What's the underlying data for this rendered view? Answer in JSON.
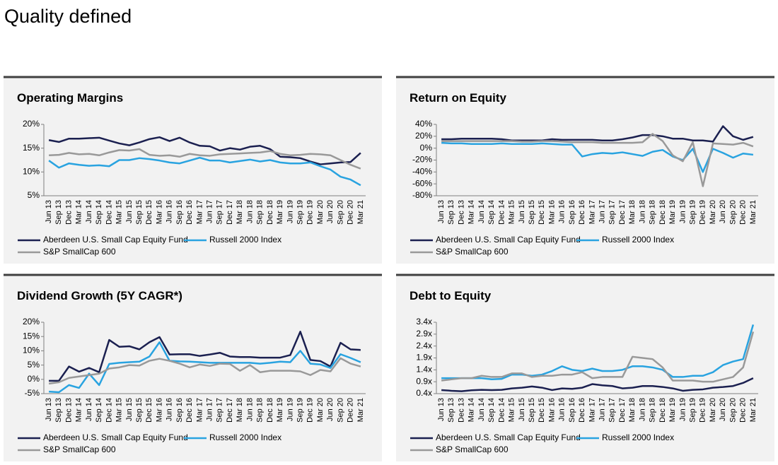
{
  "title": "Quality defined",
  "chart_data": [
    {
      "type": "line",
      "title": "Operating Margins",
      "categories": [
        "Jun 13",
        "Sep 13",
        "Dec 13",
        "Mar 14",
        "Jun 14",
        "Sep 14",
        "Dec 14",
        "Mar 15",
        "Jun 15",
        "Sep 15",
        "Dec 15",
        "Mar 16",
        "Jun 16",
        "Sep 16",
        "Dec 16",
        "Mar 17",
        "Jun 17",
        "Sep 17",
        "Dec 17",
        "Mar 18",
        "Jun 18",
        "Sep 18",
        "Dec 18",
        "Mar 19",
        "Jun 19",
        "Sep 19",
        "Dec 19",
        "Mar 20",
        "Jun 20",
        "Sep 20",
        "Dec 20",
        "Mar 21"
      ],
      "ylim": [
        5,
        20
      ],
      "yticks": [
        {
          "value": 5,
          "label": "5%"
        },
        {
          "value": 10,
          "label": "10%"
        },
        {
          "value": 15,
          "label": "15%"
        },
        {
          "value": 20,
          "label": "20%"
        }
      ],
      "series": [
        {
          "name": "Aberdeen U.S. Small Cap Equity Fund",
          "color": "#1b2050",
          "values": [
            16.7,
            16.3,
            17,
            17,
            17.1,
            17.2,
            16.6,
            16,
            15.6,
            16.2,
            16.9,
            17.3,
            16.5,
            17.2,
            16.2,
            15.5,
            15.4,
            14.5,
            15,
            14.7,
            15.3,
            15.5,
            14.8,
            13.2,
            13.1,
            12.9,
            12.2,
            11.6,
            11.8,
            12,
            12.1,
            14
          ]
        },
        {
          "name": "Russell 2000 Index",
          "color": "#29a3e0",
          "values": [
            12.4,
            10.9,
            11.8,
            11.5,
            11.3,
            11.4,
            11.2,
            12.5,
            12.5,
            12.9,
            12.7,
            12.4,
            12,
            11.8,
            12.4,
            13,
            12.4,
            12.4,
            12,
            12.3,
            12.6,
            12.2,
            12.5,
            12,
            11.8,
            11.8,
            12,
            11.2,
            10.5,
            9,
            8.4,
            7.2
          ]
        },
        {
          "name": "S&P SmallCap 600",
          "color": "#999999",
          "values": [
            13.5,
            13.6,
            14,
            13.7,
            13.8,
            13.5,
            14.1,
            14.6,
            14.5,
            14.8,
            13.6,
            13.4,
            13.5,
            13.2,
            13.8,
            13.5,
            13.4,
            13.7,
            13.8,
            13.9,
            14,
            14.1,
            14.4,
            13.8,
            13.5,
            13.6,
            13.8,
            13.7,
            13.5,
            12.5,
            11.5,
            10.7
          ]
        }
      ]
    },
    {
      "type": "line",
      "title": "Return on Equity",
      "categories": [
        "Jun 13",
        "Sep 13",
        "Dec 13",
        "Mar 14",
        "Jun 14",
        "Sep 14",
        "Dec 14",
        "Mar 15",
        "Jun 15",
        "Sep 15",
        "Dec 15",
        "Mar 16",
        "Jun 16",
        "Sep 16",
        "Dec 16",
        "Mar 17",
        "Jun 17",
        "Sep 17",
        "Dec 17",
        "Mar 18",
        "Jun 18",
        "Sep 18",
        "Dec 18",
        "Mar 19",
        "Jun 19",
        "Sep 19",
        "Dec 19",
        "Mar 20",
        "Jun 20",
        "Sep 20",
        "Dec 20",
        "Mar 21"
      ],
      "ylim": [
        -80,
        40
      ],
      "yticks": [
        {
          "value": -80,
          "label": "-80%"
        },
        {
          "value": -60,
          "label": "-60%"
        },
        {
          "value": -40,
          "label": "-40%"
        },
        {
          "value": -20,
          "label": "-20%"
        },
        {
          "value": 0,
          "label": "0%"
        },
        {
          "value": 20,
          "label": "20%"
        },
        {
          "value": 40,
          "label": "40%"
        }
      ],
      "series": [
        {
          "name": "Aberdeen U.S. Small Cap Equity Fund",
          "color": "#1b2050",
          "values": [
            15,
            15,
            16,
            16,
            16,
            16,
            15,
            13,
            13,
            13,
            13,
            15,
            14,
            14,
            14,
            14,
            13,
            13,
            15,
            18,
            22,
            22,
            20,
            16,
            16,
            13,
            13,
            11,
            37,
            20,
            14,
            19
          ]
        },
        {
          "name": "Russell 2000 Index",
          "color": "#29a3e0",
          "values": [
            9,
            8,
            8,
            7,
            7,
            7,
            8,
            7,
            7,
            7,
            8,
            7,
            6,
            6,
            -14,
            -10,
            -8,
            -9,
            -7,
            -10,
            -13,
            -6,
            -3,
            -14,
            -20,
            -1,
            -40,
            -1,
            -8,
            -16,
            -9,
            -11
          ]
        },
        {
          "name": "S&P SmallCap 600",
          "color": "#999999",
          "values": [
            12,
            12,
            12,
            12,
            12,
            12,
            12,
            12,
            11,
            11,
            12,
            12,
            11,
            10,
            10,
            10,
            9,
            9,
            9,
            9,
            10,
            24,
            12,
            -12,
            -22,
            10,
            -64,
            8,
            7,
            6,
            9,
            3
          ]
        }
      ]
    },
    {
      "type": "line",
      "title": "Dividend Growth (5Y CAGR*)",
      "categories": [
        "Jun 13",
        "Sep 13",
        "Dec 13",
        "Mar 14",
        "Jun 14",
        "Sep 14",
        "Dec 14",
        "Mar 15",
        "Jun 15",
        "Sep 15",
        "Dec 15",
        "Mar 16",
        "Jun 16",
        "Sep 16",
        "Dec 16",
        "Mar 17",
        "Jun 17",
        "Sep 17",
        "Dec 17",
        "Mar 18",
        "Jun 18",
        "Sep 18",
        "Dec 18",
        "Mar 19",
        "Jun 19",
        "Sep 19",
        "Dec 19",
        "Mar 20",
        "Jun 20",
        "Sep 20",
        "Dec 20",
        "Mar 21"
      ],
      "ylim": [
        -5,
        20
      ],
      "yticks": [
        {
          "value": -5,
          "label": "-5%"
        },
        {
          "value": 0,
          "label": "0%"
        },
        {
          "value": 5,
          "label": "5%"
        },
        {
          "value": 10,
          "label": "10%"
        },
        {
          "value": 15,
          "label": "15%"
        },
        {
          "value": 20,
          "label": "20%"
        }
      ],
      "series": [
        {
          "name": "Aberdeen U.S. Small Cap Equity Fund",
          "color": "#1b2050",
          "values": [
            -0.5,
            -0.5,
            4.5,
            2.7,
            4,
            2.5,
            13.8,
            11.4,
            11.6,
            10.5,
            13,
            14.8,
            8.7,
            8.8,
            8.8,
            8.2,
            8.7,
            9.3,
            8,
            7.8,
            7.8,
            7.6,
            7.6,
            7.6,
            8.5,
            16.7,
            6.8,
            6.4,
            4.5,
            12.8,
            10.5,
            10.3
          ]
        },
        {
          "name": "Russell 2000 Index",
          "color": "#29a3e0",
          "values": [
            -4.3,
            -4.5,
            -2,
            -3,
            2,
            -2,
            5.4,
            5.8,
            6,
            6.2,
            8,
            13,
            6.5,
            6.3,
            6.2,
            6,
            5.8,
            5.8,
            5.8,
            5.8,
            5.8,
            5.5,
            5.8,
            6.2,
            6,
            10,
            5.5,
            5.2,
            4,
            8.8,
            7.5,
            6
          ]
        },
        {
          "name": "S&P SmallCap 600",
          "color": "#999999",
          "values": [
            -1.5,
            -1,
            0.5,
            1,
            1.5,
            2,
            3.8,
            4.2,
            5,
            4.8,
            6.5,
            7.2,
            6.5,
            5.5,
            4.2,
            5.2,
            4.7,
            5.5,
            5.4,
            3,
            5,
            2.5,
            3,
            3,
            3,
            2.8,
            1.5,
            3.3,
            2.8,
            7.4,
            5.5,
            4.5
          ]
        }
      ]
    },
    {
      "type": "line",
      "title": "Debt to Equity",
      "categories": [
        "Jun 13",
        "Sep 13",
        "Dec 13",
        "Mar 14",
        "Jun 14",
        "Sep 14",
        "Dec 14",
        "Mar 15",
        "Jun 15",
        "Sep 15",
        "Dec 15",
        "Mar 16",
        "Jun 16",
        "Sep 16",
        "Dec 16",
        "Mar 17",
        "Jun 17",
        "Sep 17",
        "Dec 17",
        "Mar 18",
        "Jun 18",
        "Sep 18",
        "Dec 18",
        "Mar 19",
        "Jun 19",
        "Sep 19",
        "Dec 19",
        "Mar 20",
        "Jun 20",
        "Sep 20",
        "Dec 20",
        "Mar 21"
      ],
      "ylim": [
        0.4,
        3.4
      ],
      "yticks": [
        {
          "value": 0.4,
          "label": "0.4x"
        },
        {
          "value": 0.9,
          "label": "0.9x"
        },
        {
          "value": 1.4,
          "label": "1.4x"
        },
        {
          "value": 1.9,
          "label": "1.9x"
        },
        {
          "value": 2.4,
          "label": "2.4x"
        },
        {
          "value": 2.9,
          "label": "2.9x"
        },
        {
          "value": 3.4,
          "label": "3.4x"
        }
      ],
      "series": [
        {
          "name": "Aberdeen U.S. Small Cap Equity Fund",
          "color": "#1b2050",
          "values": [
            0.55,
            0.52,
            0.5,
            0.54,
            0.56,
            0.55,
            0.56,
            0.62,
            0.65,
            0.7,
            0.65,
            0.55,
            0.62,
            0.6,
            0.65,
            0.8,
            0.75,
            0.72,
            0.62,
            0.65,
            0.72,
            0.72,
            0.68,
            0.62,
            0.52,
            0.56,
            0.58,
            0.65,
            0.68,
            0.72,
            0.85,
            1.05
          ]
        },
        {
          "name": "Russell 2000 Index",
          "color": "#29a3e0",
          "values": [
            1.05,
            1.05,
            1.05,
            1.05,
            1.05,
            1.0,
            1.02,
            1.2,
            1.2,
            1.15,
            1.2,
            1.35,
            1.55,
            1.4,
            1.35,
            1.45,
            1.35,
            1.35,
            1.4,
            1.55,
            1.55,
            1.5,
            1.4,
            1.1,
            1.1,
            1.15,
            1.15,
            1.3,
            1.6,
            1.75,
            1.85,
            3.3
          ]
        },
        {
          "name": "S&P SmallCap 600",
          "color": "#999999",
          "values": [
            0.95,
            1.0,
            1.05,
            1.05,
            1.15,
            1.1,
            1.1,
            1.25,
            1.25,
            1.1,
            1.15,
            1.15,
            1.2,
            1.2,
            1.3,
            1.05,
            1.1,
            1.1,
            1.1,
            1.95,
            1.9,
            1.85,
            1.5,
            0.95,
            0.95,
            0.95,
            0.9,
            0.9,
            1.0,
            1.1,
            1.5,
            3.0
          ]
        }
      ]
    }
  ]
}
